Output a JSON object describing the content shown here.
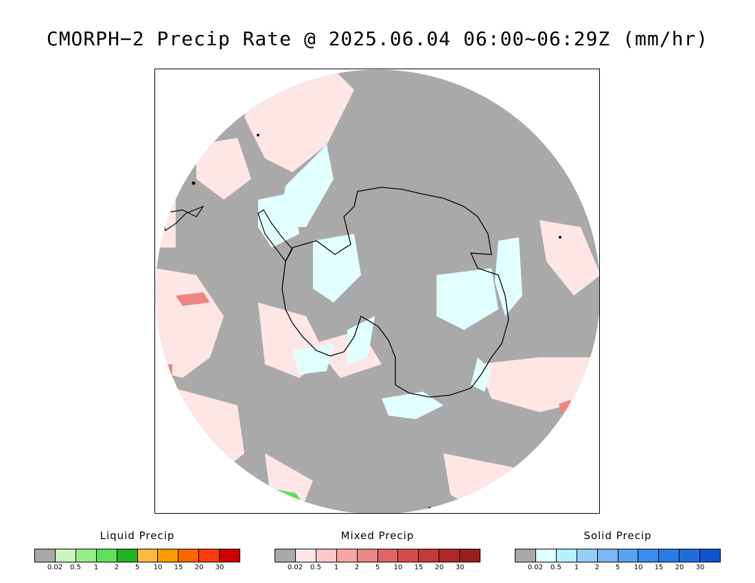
{
  "title": "CMORPH−2 Precip Rate @ 2025.06.04 06:00~06:29Z (mm/hr)",
  "map": {
    "projection": "south-polar-stereographic",
    "background_color": "#a9a9a9",
    "coastline_color": "#000000",
    "icons": [
      "antarctica-coastline",
      "south-america-tip",
      "new-zealand-coast"
    ]
  },
  "legends": [
    {
      "id": "liquid",
      "title": "Liquid Precip",
      "colors": [
        "#a9a9a9",
        "#c8f5bd",
        "#96ee87",
        "#5ee05c",
        "#1fb323",
        "#fbb93d",
        "#fb9b00",
        "#fd6500",
        "#fd3a0c",
        "#cc0000"
      ],
      "ticks": [
        "0.02",
        "0.5",
        "1",
        "2",
        "5",
        "10",
        "15",
        "20",
        "30"
      ]
    },
    {
      "id": "mixed",
      "title": "Mixed Precip",
      "colors": [
        "#a9a9a9",
        "#ffe6e6",
        "#ffc8c8",
        "#f5a5a5",
        "#ec8585",
        "#e06464",
        "#d24c4c",
        "#c43a3a",
        "#b02828",
        "#9a1e1e"
      ],
      "ticks": [
        "0.02",
        "0.5",
        "1",
        "2",
        "5",
        "10",
        "15",
        "20",
        "30"
      ]
    },
    {
      "id": "solid",
      "title": "Solid Precip",
      "colors": [
        "#a9a9a9",
        "#e2ffff",
        "#b4f0fa",
        "#94cdf5",
        "#7ab7f4",
        "#57a2f1",
        "#3a8ced",
        "#2b7ae6",
        "#1f6ddd",
        "#1155cc"
      ],
      "ticks": [
        "0.02",
        "0.5",
        "1",
        "2",
        "5",
        "10",
        "15",
        "20",
        "30"
      ]
    }
  ]
}
